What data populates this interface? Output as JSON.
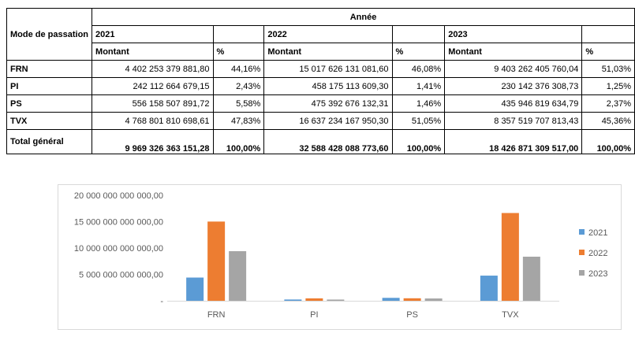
{
  "table": {
    "mode_header": "Mode de passation",
    "annee_header": "Année",
    "years": [
      "2021",
      "2022",
      "2023"
    ],
    "amount_label": "Montant",
    "pct_label": "%",
    "rows": [
      {
        "label": "FRN",
        "cells": [
          "4 402 253 379 881,80",
          "44,16%",
          "15 017 626 131 081,60",
          "46,08%",
          "9 403 262 405 760,04",
          "51,03%"
        ]
      },
      {
        "label": "PI",
        "cells": [
          "242 112 664 679,15",
          "2,43%",
          "458 175 113 609,30",
          "1,41%",
          "230 142 376 308,73",
          "1,25%"
        ]
      },
      {
        "label": "PS",
        "cells": [
          "556 158 507 891,72",
          "5,58%",
          "475 392 676 132,31",
          "1,46%",
          "435 946 819 634,79",
          "2,37%"
        ]
      },
      {
        "label": "TVX",
        "cells": [
          "4 768 801 810 698,61",
          "47,83%",
          "16 637 234 167 950,30",
          "51,05%",
          "8 357 519 707 813,43",
          "45,36%"
        ]
      }
    ],
    "total": {
      "label": "Total général",
      "cells": [
        "9 969 326 363 151,28",
        "100,00%",
        "32 588 428 088 773,60",
        "100,00%",
        "18 426 871 309 517,00",
        "100,00%"
      ]
    }
  },
  "chart_data": {
    "type": "bar",
    "title": "",
    "xlabel": "",
    "ylabel": "",
    "categories": [
      "FRN",
      "PI",
      "PS",
      "TVX"
    ],
    "series": [
      {
        "name": "2021",
        "color": "#5b9bd5",
        "values": [
          4402253379881.8,
          242112664679.15,
          556158507891.72,
          4768801810698.61
        ]
      },
      {
        "name": "2022",
        "color": "#ed7d31",
        "values": [
          15017626131081.6,
          458175113609.3,
          475392676132.31,
          16637234167950.3
        ]
      },
      {
        "name": "2023",
        "color": "#a5a5a5",
        "values": [
          9403262405760.04,
          230142376308.73,
          435946819634.79,
          8357519707813.43
        ]
      }
    ],
    "ylim": [
      0,
      20000000000000
    ],
    "yticks": [
      0,
      5000000000000,
      10000000000000,
      15000000000000,
      20000000000000
    ],
    "ytick_labels": [
      "-",
      "5 000 000 000 000,00",
      "10 000 000 000 000,00",
      "15 000 000 000 000,00",
      "20 000 000 000 000,00"
    ],
    "legend_position": "right",
    "grid": false
  }
}
